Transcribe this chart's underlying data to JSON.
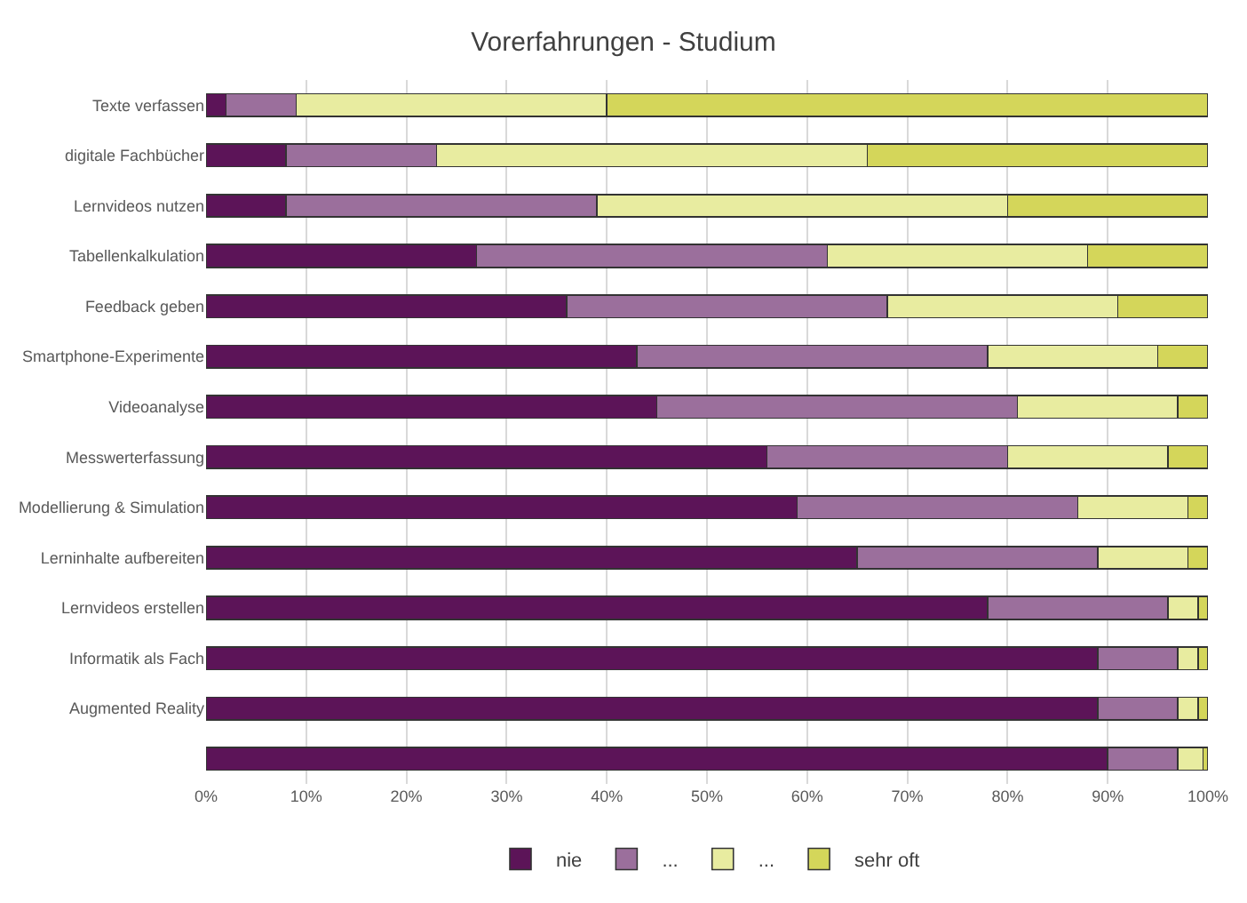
{
  "chart_data": {
    "type": "bar",
    "orientation": "horizontal",
    "stacked": true,
    "title": "Vorerfahrungen - Studium",
    "categories": [
      "Texte verfassen",
      "digitale Fachbücher",
      "Lernvideos nutzen",
      "Tabellenkalkulation",
      "Feedback geben",
      "Smartphone-Experimente",
      "Videoanalyse",
      "Messwerterfassung",
      "Modellierung & Simulation",
      "Lerninhalte aufbereiten",
      "Lernvideos erstellen",
      "Informatik als Fach",
      "Augmented Reality",
      null
    ],
    "series": [
      {
        "name": "nie",
        "color": "#5c1458",
        "values": [
          2,
          8,
          8,
          27,
          36,
          43,
          45,
          56,
          59,
          65,
          78,
          89,
          89,
          90
        ]
      },
      {
        "name": "...",
        "color": "#9b6f9c",
        "values": [
          7,
          15,
          31,
          35,
          32,
          35,
          36,
          24,
          28,
          24,
          18,
          8,
          8,
          7
        ]
      },
      {
        "name": "...",
        "color": "#e8eca0",
        "values": [
          31,
          43,
          41,
          26,
          23,
          17,
          16,
          16,
          11,
          9,
          3,
          2,
          2,
          2.5
        ]
      },
      {
        "name": "sehr oft",
        "color": "#d4d65a",
        "values": [
          60,
          34,
          20,
          12,
          9,
          5,
          3,
          4,
          2,
          2,
          1,
          1,
          1,
          0.5
        ]
      }
    ],
    "xlim": [
      0,
      100
    ],
    "xticks": [
      {
        "value": 0,
        "label": "0%"
      },
      {
        "value": 10,
        "label": "10%"
      },
      {
        "value": 20,
        "label": "20%"
      },
      {
        "value": 30,
        "label": "30%"
      },
      {
        "value": 40,
        "label": "40%"
      },
      {
        "value": 50,
        "label": "50%"
      },
      {
        "value": 60,
        "label": "60%"
      },
      {
        "value": 70,
        "label": "70%"
      },
      {
        "value": 80,
        "label": "80%"
      },
      {
        "value": 90,
        "label": "90%"
      },
      {
        "value": 100,
        "label": "100%"
      }
    ],
    "grid": "x",
    "legend": "bottom"
  }
}
